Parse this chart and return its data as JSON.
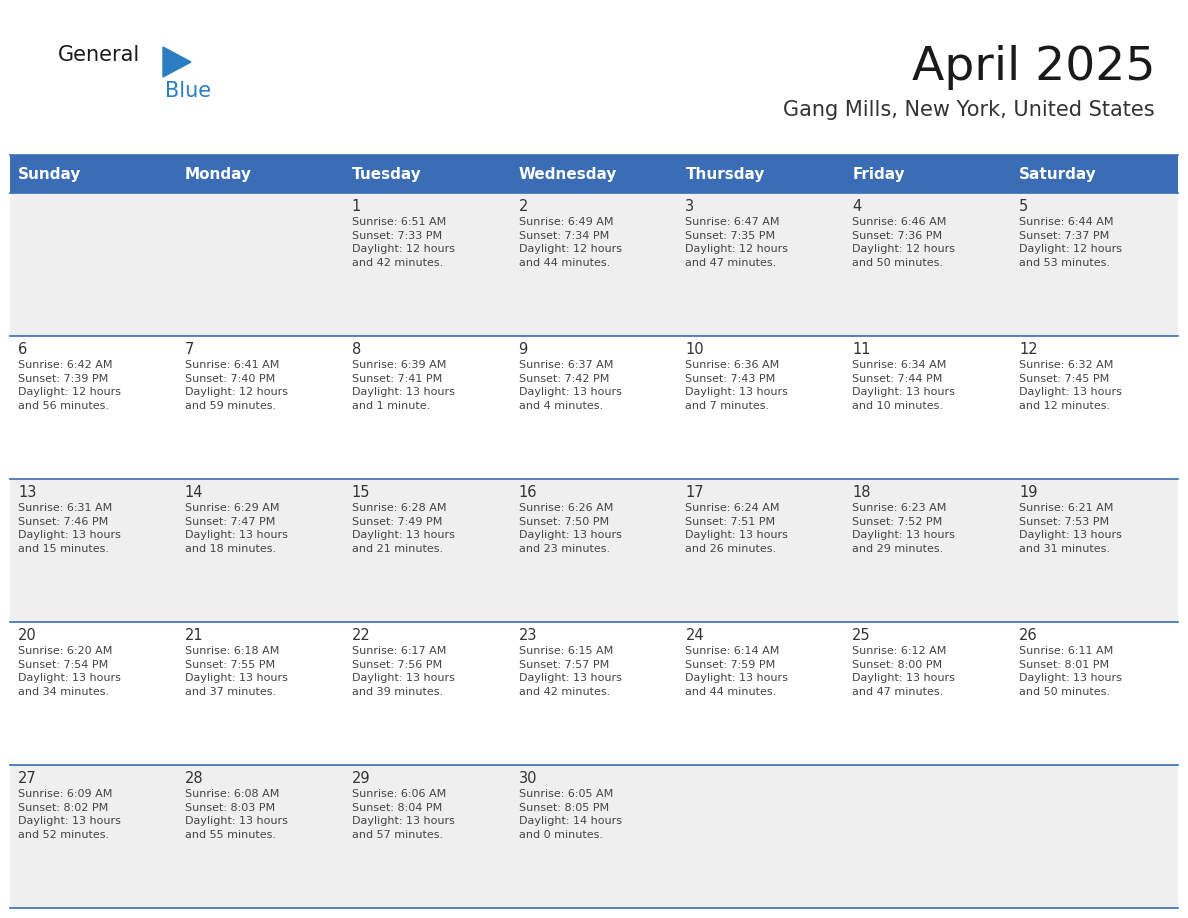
{
  "title": "April 2025",
  "subtitle": "Gang Mills, New York, United States",
  "header_bg_color": "#3A6DB5",
  "header_text_color": "#FFFFFF",
  "header_font_size": 11,
  "days_of_week": [
    "Sunday",
    "Monday",
    "Tuesday",
    "Wednesday",
    "Thursday",
    "Friday",
    "Saturday"
  ],
  "cell_bg_even": "#EFEFEF",
  "cell_bg_odd": "#FFFFFF",
  "cell_border_color": "#3A6DB5",
  "title_color": "#1A1A1A",
  "subtitle_color": "#333333",
  "cell_text_color": "#444444",
  "day_number_color": "#333333",
  "logo_general_color": "#1A1A1A",
  "logo_blue_color": "#2B7EC1",
  "weeks": [
    [
      {
        "day": "",
        "text": ""
      },
      {
        "day": "",
        "text": ""
      },
      {
        "day": "1",
        "text": "Sunrise: 6:51 AM\nSunset: 7:33 PM\nDaylight: 12 hours\nand 42 minutes."
      },
      {
        "day": "2",
        "text": "Sunrise: 6:49 AM\nSunset: 7:34 PM\nDaylight: 12 hours\nand 44 minutes."
      },
      {
        "day": "3",
        "text": "Sunrise: 6:47 AM\nSunset: 7:35 PM\nDaylight: 12 hours\nand 47 minutes."
      },
      {
        "day": "4",
        "text": "Sunrise: 6:46 AM\nSunset: 7:36 PM\nDaylight: 12 hours\nand 50 minutes."
      },
      {
        "day": "5",
        "text": "Sunrise: 6:44 AM\nSunset: 7:37 PM\nDaylight: 12 hours\nand 53 minutes."
      }
    ],
    [
      {
        "day": "6",
        "text": "Sunrise: 6:42 AM\nSunset: 7:39 PM\nDaylight: 12 hours\nand 56 minutes."
      },
      {
        "day": "7",
        "text": "Sunrise: 6:41 AM\nSunset: 7:40 PM\nDaylight: 12 hours\nand 59 minutes."
      },
      {
        "day": "8",
        "text": "Sunrise: 6:39 AM\nSunset: 7:41 PM\nDaylight: 13 hours\nand 1 minute."
      },
      {
        "day": "9",
        "text": "Sunrise: 6:37 AM\nSunset: 7:42 PM\nDaylight: 13 hours\nand 4 minutes."
      },
      {
        "day": "10",
        "text": "Sunrise: 6:36 AM\nSunset: 7:43 PM\nDaylight: 13 hours\nand 7 minutes."
      },
      {
        "day": "11",
        "text": "Sunrise: 6:34 AM\nSunset: 7:44 PM\nDaylight: 13 hours\nand 10 minutes."
      },
      {
        "day": "12",
        "text": "Sunrise: 6:32 AM\nSunset: 7:45 PM\nDaylight: 13 hours\nand 12 minutes."
      }
    ],
    [
      {
        "day": "13",
        "text": "Sunrise: 6:31 AM\nSunset: 7:46 PM\nDaylight: 13 hours\nand 15 minutes."
      },
      {
        "day": "14",
        "text": "Sunrise: 6:29 AM\nSunset: 7:47 PM\nDaylight: 13 hours\nand 18 minutes."
      },
      {
        "day": "15",
        "text": "Sunrise: 6:28 AM\nSunset: 7:49 PM\nDaylight: 13 hours\nand 21 minutes."
      },
      {
        "day": "16",
        "text": "Sunrise: 6:26 AM\nSunset: 7:50 PM\nDaylight: 13 hours\nand 23 minutes."
      },
      {
        "day": "17",
        "text": "Sunrise: 6:24 AM\nSunset: 7:51 PM\nDaylight: 13 hours\nand 26 minutes."
      },
      {
        "day": "18",
        "text": "Sunrise: 6:23 AM\nSunset: 7:52 PM\nDaylight: 13 hours\nand 29 minutes."
      },
      {
        "day": "19",
        "text": "Sunrise: 6:21 AM\nSunset: 7:53 PM\nDaylight: 13 hours\nand 31 minutes."
      }
    ],
    [
      {
        "day": "20",
        "text": "Sunrise: 6:20 AM\nSunset: 7:54 PM\nDaylight: 13 hours\nand 34 minutes."
      },
      {
        "day": "21",
        "text": "Sunrise: 6:18 AM\nSunset: 7:55 PM\nDaylight: 13 hours\nand 37 minutes."
      },
      {
        "day": "22",
        "text": "Sunrise: 6:17 AM\nSunset: 7:56 PM\nDaylight: 13 hours\nand 39 minutes."
      },
      {
        "day": "23",
        "text": "Sunrise: 6:15 AM\nSunset: 7:57 PM\nDaylight: 13 hours\nand 42 minutes."
      },
      {
        "day": "24",
        "text": "Sunrise: 6:14 AM\nSunset: 7:59 PM\nDaylight: 13 hours\nand 44 minutes."
      },
      {
        "day": "25",
        "text": "Sunrise: 6:12 AM\nSunset: 8:00 PM\nDaylight: 13 hours\nand 47 minutes."
      },
      {
        "day": "26",
        "text": "Sunrise: 6:11 AM\nSunset: 8:01 PM\nDaylight: 13 hours\nand 50 minutes."
      }
    ],
    [
      {
        "day": "27",
        "text": "Sunrise: 6:09 AM\nSunset: 8:02 PM\nDaylight: 13 hours\nand 52 minutes."
      },
      {
        "day": "28",
        "text": "Sunrise: 6:08 AM\nSunset: 8:03 PM\nDaylight: 13 hours\nand 55 minutes."
      },
      {
        "day": "29",
        "text": "Sunrise: 6:06 AM\nSunset: 8:04 PM\nDaylight: 13 hours\nand 57 minutes."
      },
      {
        "day": "30",
        "text": "Sunrise: 6:05 AM\nSunset: 8:05 PM\nDaylight: 14 hours\nand 0 minutes."
      },
      {
        "day": "",
        "text": ""
      },
      {
        "day": "",
        "text": ""
      },
      {
        "day": "",
        "text": ""
      }
    ]
  ]
}
